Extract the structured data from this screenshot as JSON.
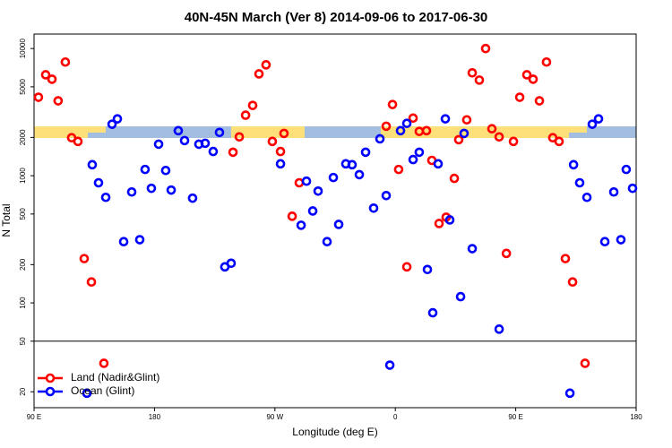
{
  "chart_data": {
    "type": "scatter",
    "title": "40N-45N March (Ver 8)   2014-09-06 to 2017-06-30",
    "x_label": "Longitude (deg E)",
    "y_label": "N Total",
    "xlim": [
      90,
      540
    ],
    "xticks": [
      {
        "value": 90,
        "label": "90 E"
      },
      180,
      {
        "value": 270,
        "label": "90 W"
      },
      {
        "value": 360,
        "label": "0"
      },
      {
        "value": 450,
        "label": "90 E"
      },
      {
        "value": 540,
        "label": "180"
      }
    ],
    "ylim": [
      15,
      13000
    ],
    "log_y": true,
    "yticks": [
      20,
      50,
      100,
      200,
      500,
      1000,
      2000,
      5000,
      10000
    ],
    "panel_break": 50,
    "legend": "bottom-left",
    "series": [
      {
        "name": "Land (Nadir&Glint)",
        "color": "#ff0000",
        "x": [
          93.3,
          98.7,
          103.4,
          108,
          113.4,
          118.1,
          122.8,
          127.5,
          132.9,
          142.2,
          238.7,
          243.4,
          248.1,
          253.4,
          258.1,
          263.4,
          268.1,
          274.2,
          276.8,
          282.9,
          288.2,
          353.2,
          357.9,
          362.5,
          368.6,
          373.3,
          377.9,
          383.3,
          387.3,
          392.7,
          398,
          404.1,
          407.4,
          413.4,
          417.5,
          422.8,
          427.5,
          432.2,
          437.6,
          443,
          448.3,
          453,
          458.3,
          463,
          467.7,
          473,
          477.7,
          482.4,
          487.1,
          492.5,
          501.8
        ],
        "values": [
          4140,
          6220,
          5740,
          3880,
          7830,
          1990,
          1860,
          223,
          146,
          33.5,
          1530,
          2020,
          2990,
          3570,
          6320,
          7450,
          1860,
          1550,
          2150,
          480,
          880,
          2450,
          3630,
          1120,
          192,
          2840,
          2230,
          2260,
          1320,
          421,
          472,
          953,
          1920,
          2750,
          6440,
          5650,
          10000,
          2340,
          2020,
          245,
          1860,
          4140,
          6220,
          5740,
          3880,
          7830,
          1990,
          1860,
          223,
          146,
          33.5
        ]
      },
      {
        "name": "Ocean (Glint)",
        "color": "#0000ff",
        "x": [
          129.5,
          133.5,
          138.2,
          143.6,
          148.3,
          152.3,
          157,
          163,
          169,
          173,
          177.7,
          183.1,
          188.4,
          192.5,
          197.8,
          202.5,
          208.5,
          213.2,
          217.9,
          223.9,
          228.6,
          232.6,
          237.3,
          274.2,
          289.6,
          293.6,
          298.3,
          302.3,
          309,
          313.7,
          317.7,
          323,
          327.7,
          333.1,
          337.8,
          343.8,
          348.5,
          353.2,
          355.9,
          363.9,
          368.6,
          373.3,
          377.9,
          384,
          388,
          392,
          397.4,
          400.7,
          408.8,
          411.4,
          417.5,
          437.6,
          490.5,
          493.2,
          497.8,
          503.2,
          507.2,
          511.9,
          516.6,
          523.3,
          528.6,
          532.6,
          537.3
        ],
        "values": [
          19.5,
          1220,
          880,
          676,
          2540,
          2800,
          303,
          745,
          314,
          1120,
          796,
          1770,
          1100,
          771,
          2260,
          1890,
          666,
          1770,
          1800,
          1550,
          2190,
          192,
          205,
          1240,
          408,
          906,
          528,
          757,
          303,
          968,
          414,
          1240,
          1220,
          1020,
          1530,
          556,
          1950,
          698,
          32.4,
          2260,
          2580,
          1340,
          1530,
          183,
          83.6,
          1240,
          2800,
          449,
          112,
          2150,
          267,
          62.2,
          19.5,
          1220,
          880,
          676,
          2540,
          2800,
          303,
          745,
          314,
          1120,
          796
        ]
      }
    ]
  }
}
